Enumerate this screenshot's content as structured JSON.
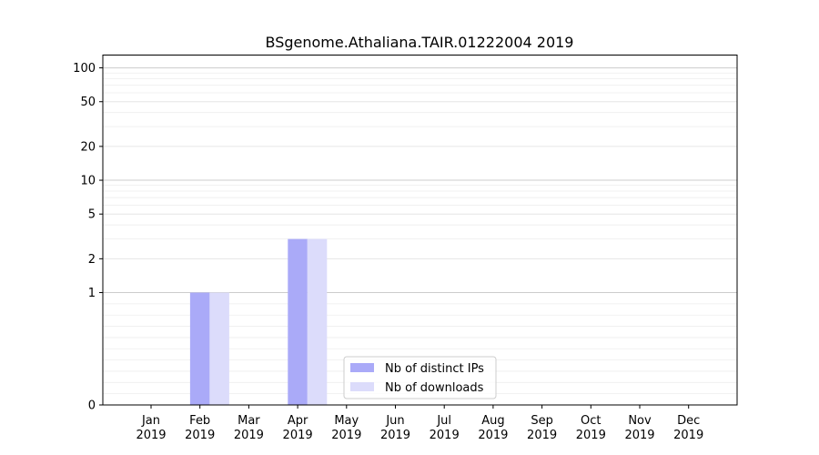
{
  "chart_data": {
    "type": "bar",
    "title": "BSgenome.Athaliana.TAIR.01222004 2019",
    "xlabel": "",
    "ylabel": "",
    "y_scale": "symlog",
    "ylim": [
      0,
      130
    ],
    "y_ticks": [
      0,
      1,
      2,
      5,
      10,
      20,
      50,
      100
    ],
    "grid": true,
    "legend_position": "lower-center",
    "categories": [
      {
        "month": "Jan",
        "year": "2019"
      },
      {
        "month": "Feb",
        "year": "2019"
      },
      {
        "month": "Mar",
        "year": "2019"
      },
      {
        "month": "Apr",
        "year": "2019"
      },
      {
        "month": "May",
        "year": "2019"
      },
      {
        "month": "Jun",
        "year": "2019"
      },
      {
        "month": "Jul",
        "year": "2019"
      },
      {
        "month": "Aug",
        "year": "2019"
      },
      {
        "month": "Sep",
        "year": "2019"
      },
      {
        "month": "Oct",
        "year": "2019"
      },
      {
        "month": "Nov",
        "year": "2019"
      },
      {
        "month": "Dec",
        "year": "2019"
      }
    ],
    "series": [
      {
        "name": "Nb of distinct IPs",
        "color": "#aaaaf8",
        "values": [
          0,
          1,
          0,
          3,
          0,
          0,
          0,
          0,
          0,
          0,
          0,
          0
        ]
      },
      {
        "name": "Nb of downloads",
        "color": "#dcdcfb",
        "values": [
          0,
          1,
          0,
          3,
          0,
          0,
          0,
          0,
          0,
          0,
          0,
          0
        ]
      }
    ]
  }
}
